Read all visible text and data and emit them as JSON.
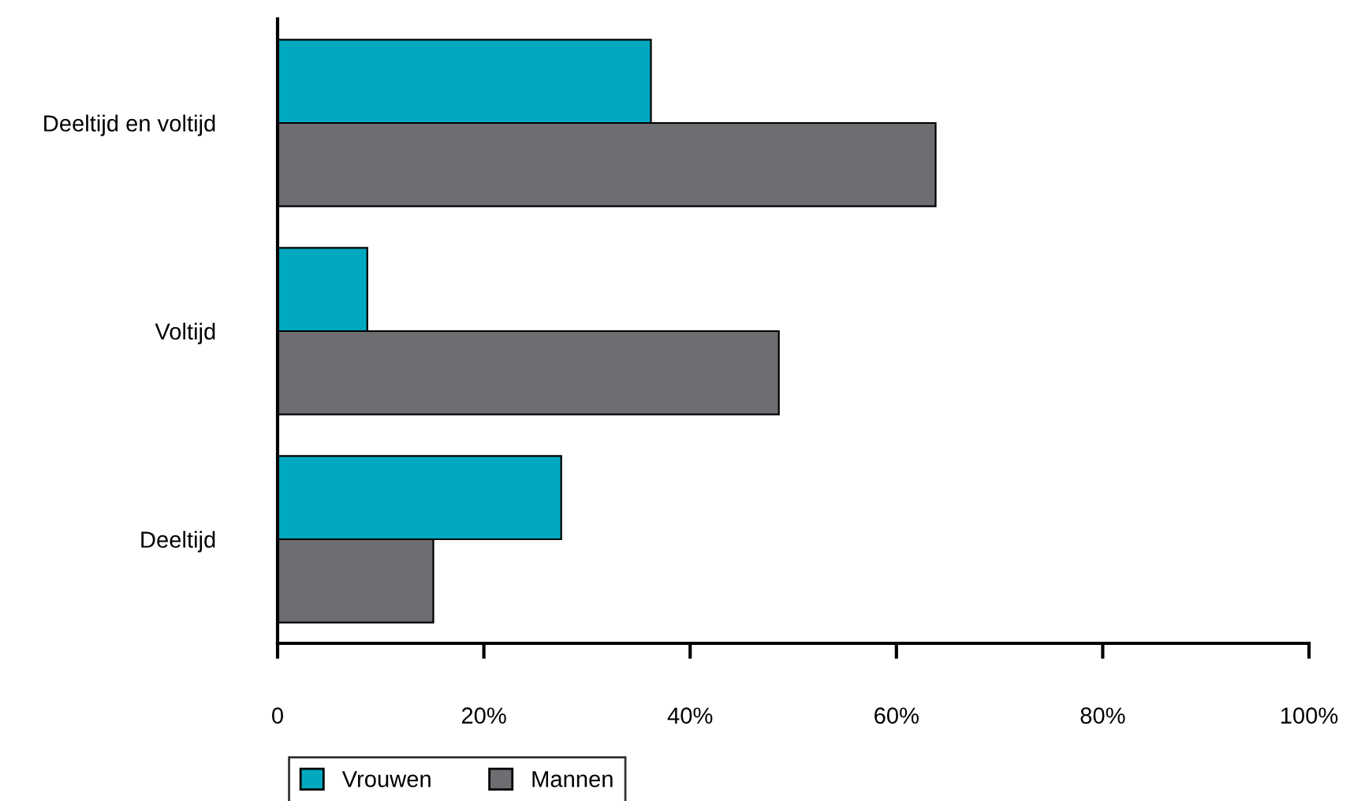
{
  "chart_data": {
    "type": "bar",
    "orientation": "horizontal",
    "categories": [
      "Deeltijd en voltijd",
      "Voltijd",
      "Deeltijd"
    ],
    "series": [
      {
        "name": "Vrouwen",
        "color": "#00a9bf",
        "values": [
          36.2,
          8.7,
          27.5
        ]
      },
      {
        "name": "Mannen",
        "color": "#6d6e71",
        "values": [
          63.8,
          48.6,
          15.1
        ]
      }
    ],
    "xlim": [
      0,
      100
    ],
    "xticks": [
      0,
      {
        "value": 20,
        "label": "20%"
      },
      {
        "value": 40,
        "label": "40%"
      },
      {
        "value": 60,
        "label": "60%"
      },
      {
        "value": 80,
        "label": "80%"
      },
      {
        "value": 100,
        "label": "100%"
      }
    ],
    "grid": false,
    "legend": "bottom left"
  }
}
